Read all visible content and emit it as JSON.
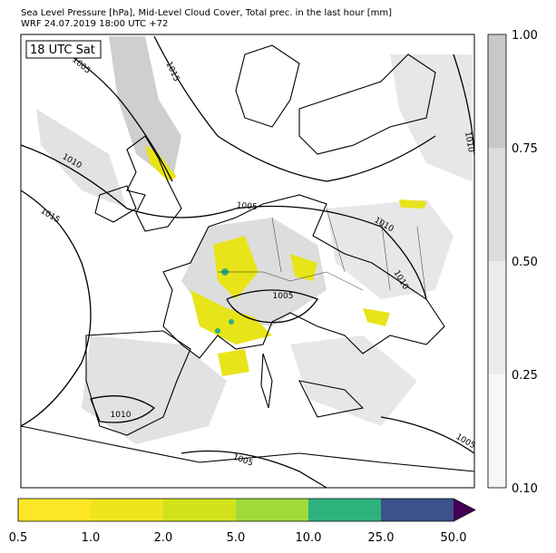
{
  "header": {
    "line1": "Sea Level Pressure [hPa], Mid-Level Cloud Cover, Total prec. in the last hour [mm]",
    "line2": "WRF 24.07.2019 18:00 UTC +72"
  },
  "map": {
    "time_label": "18 UTC Sat",
    "contour_labels": [
      "1005",
      "1015",
      "1010",
      "1015",
      "1005",
      "1010",
      "1010",
      "1005",
      "1010",
      "1010",
      "1005",
      "1005"
    ]
  },
  "cloud_colorbar": {
    "ticks": [
      "0.10",
      "0.25",
      "0.50",
      "0.75",
      "1.00"
    ]
  },
  "precip_colorbar": {
    "ticks": [
      "0.5",
      "1.0",
      "2.0",
      "5.0",
      "10.0",
      "25.0",
      "50.0"
    ]
  }
}
